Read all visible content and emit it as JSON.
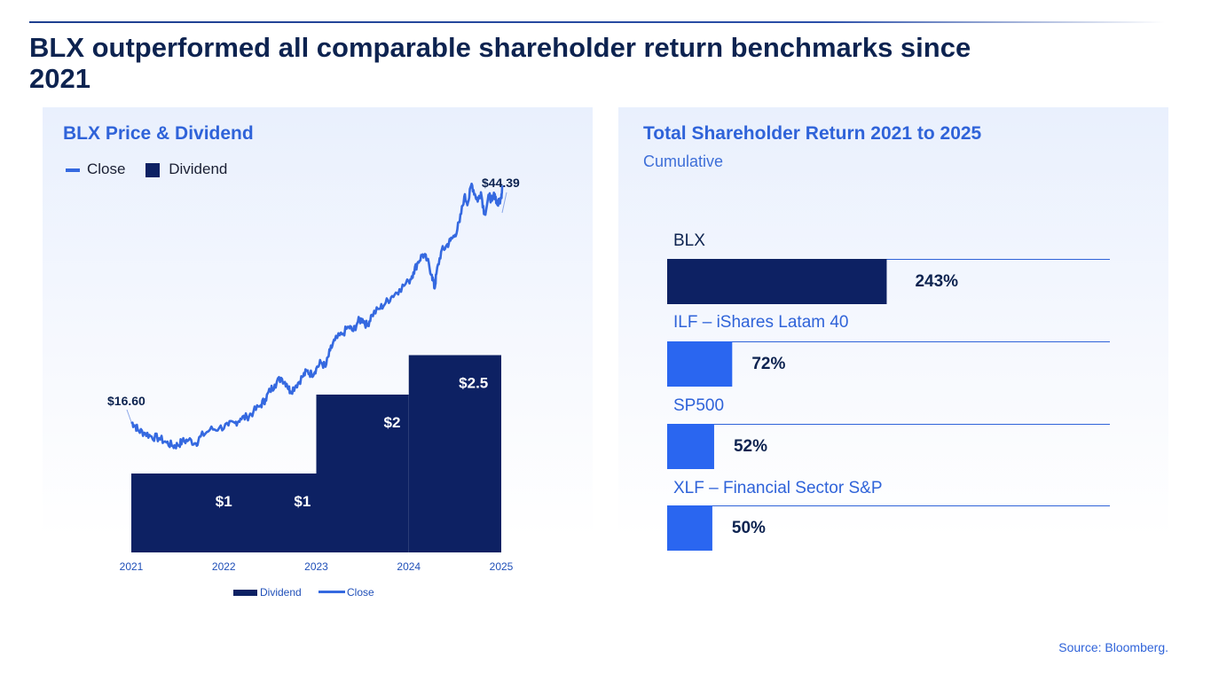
{
  "page": {
    "title": "BLX outperformed all comparable shareholder return benchmarks since 2021",
    "source": "Source: Bloomberg."
  },
  "colors": {
    "navy": "#0d2163",
    "blue": "#2a66f0",
    "line": "#3569e0",
    "text_blue": "#2f63d9"
  },
  "chart_data": [
    {
      "type": "line+step-area",
      "title": "BLX Price & Dividend",
      "legend_top": [
        "Close",
        "Dividend"
      ],
      "legend_bottom": [
        "Dividend",
        "Close"
      ],
      "x_ticks": [
        "2021",
        "2022",
        "2023",
        "2024",
        "2025"
      ],
      "xlim": [
        2021,
        2025
      ],
      "close": {
        "name": "Close",
        "start_label": "$16.60",
        "end_label": "$44.39",
        "points": [
          [
            2021.0,
            16.6
          ],
          [
            2021.04,
            16.2
          ],
          [
            2021.08,
            15.6
          ],
          [
            2021.15,
            15.3
          ],
          [
            2021.22,
            14.9
          ],
          [
            2021.3,
            14.7
          ],
          [
            2021.38,
            14.2
          ],
          [
            2021.45,
            13.8
          ],
          [
            2021.5,
            13.9
          ],
          [
            2021.55,
            14.3
          ],
          [
            2021.62,
            14.5
          ],
          [
            2021.7,
            14.1
          ],
          [
            2021.75,
            14.9
          ],
          [
            2021.85,
            15.7
          ],
          [
            2021.95,
            15.9
          ],
          [
            2022.05,
            16.2
          ],
          [
            2022.12,
            16.5
          ],
          [
            2022.18,
            17.0
          ],
          [
            2022.25,
            17.2
          ],
          [
            2022.32,
            17.8
          ],
          [
            2022.4,
            18.6
          ],
          [
            2022.45,
            19.3
          ],
          [
            2022.5,
            20.3
          ],
          [
            2022.55,
            21.0
          ],
          [
            2022.62,
            21.8
          ],
          [
            2022.68,
            21.1
          ],
          [
            2022.72,
            20.2
          ],
          [
            2022.78,
            20.9
          ],
          [
            2022.85,
            21.9
          ],
          [
            2022.9,
            22.6
          ],
          [
            2022.95,
            22.2
          ],
          [
            2023.0,
            22.9
          ],
          [
            2023.05,
            23.6
          ],
          [
            2023.1,
            23.1
          ],
          [
            2023.15,
            25.0
          ],
          [
            2023.2,
            26.2
          ],
          [
            2023.28,
            26.9
          ],
          [
            2023.35,
            27.8
          ],
          [
            2023.4,
            27.3
          ],
          [
            2023.45,
            28.4
          ],
          [
            2023.5,
            28.7
          ],
          [
            2023.55,
            27.9
          ],
          [
            2023.6,
            29.2
          ],
          [
            2023.68,
            29.9
          ],
          [
            2023.75,
            30.6
          ],
          [
            2023.82,
            31.4
          ],
          [
            2023.9,
            32.2
          ],
          [
            2024.0,
            33.1
          ],
          [
            2024.05,
            34.2
          ],
          [
            2024.1,
            35.4
          ],
          [
            2024.15,
            36.3
          ],
          [
            2024.2,
            35.6
          ],
          [
            2024.25,
            33.9
          ],
          [
            2024.28,
            32.3
          ],
          [
            2024.3,
            34.1
          ],
          [
            2024.35,
            36.6
          ],
          [
            2024.4,
            37.2
          ],
          [
            2024.45,
            37.9
          ],
          [
            2024.5,
            38.6
          ],
          [
            2024.55,
            40.1
          ],
          [
            2024.6,
            43.1
          ],
          [
            2024.64,
            42.4
          ],
          [
            2024.68,
            44.6
          ],
          [
            2024.72,
            43.2
          ],
          [
            2024.75,
            42.7
          ],
          [
            2024.78,
            43.6
          ],
          [
            2024.82,
            41.0
          ],
          [
            2024.87,
            43.2
          ],
          [
            2024.9,
            42.6
          ],
          [
            2024.93,
            43.4
          ],
          [
            2024.96,
            42.1
          ],
          [
            2025.0,
            42.9
          ],
          [
            2025.01,
            44.39
          ]
        ]
      },
      "dividend": {
        "name": "Dividend",
        "steps": [
          {
            "from": 2021,
            "to": 2023,
            "value": 1
          },
          {
            "from": 2023,
            "to": 2024,
            "value": 2
          },
          {
            "from": 2024,
            "to": 2025,
            "value": 2.5
          }
        ],
        "labels": [
          {
            "x": 2022.0,
            "value": 1,
            "text": "$1"
          },
          {
            "x": 2022.85,
            "value": 1,
            "text": "$1"
          },
          {
            "x": 2023.82,
            "value": 2,
            "text": "$2"
          },
          {
            "x": 2024.7,
            "value": 2.5,
            "text": "$2.5"
          }
        ]
      }
    },
    {
      "type": "bar",
      "orientation": "horizontal",
      "title": "Total Shareholder Return 2021 to 2025",
      "subtitle": "Cumulative",
      "xlim": [
        0,
        490
      ],
      "series": [
        {
          "name": "BLX",
          "value": 243,
          "label": "243%",
          "color": "#0d2163"
        },
        {
          "name": "ILF – iShares Latam 40",
          "value": 72,
          "label": "72%",
          "color": "#2a66f0"
        },
        {
          "name": "SP500",
          "value": 52,
          "label": "52%",
          "color": "#2a66f0"
        },
        {
          "name": "XLF – Financial Sector S&P",
          "value": 50,
          "label": "50%",
          "color": "#2a66f0"
        }
      ]
    }
  ]
}
